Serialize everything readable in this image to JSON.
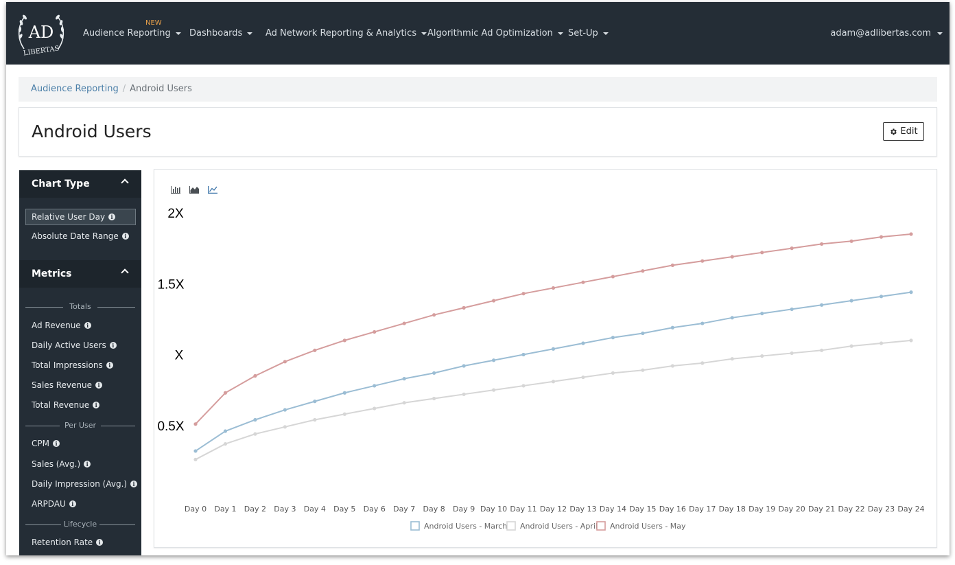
{
  "nav": {
    "badge": "NEW",
    "items": [
      "Audience Reporting",
      "Dashboards",
      "Ad Network Reporting & Analytics",
      "Algorithmic Ad Optimization",
      "Set-Up"
    ],
    "user": "adam@adlibertas.com",
    "logo_text_top": "AD",
    "logo_text_bottom": "LIBERTAS"
  },
  "breadcrumb": {
    "parent": "Audience Reporting",
    "separator": "/",
    "current": "Android Users"
  },
  "page": {
    "title": "Android Users",
    "edit_label": "Edit"
  },
  "sidebar": {
    "chart_type": {
      "title": "Chart Type",
      "items": [
        "Relative User Day",
        "Absolute Date Range"
      ],
      "selected": "Relative User Day"
    },
    "metrics": {
      "title": "Metrics",
      "groups": [
        {
          "label": "Totals",
          "items": [
            "Ad Revenue",
            "Daily Active Users",
            "Total Impressions",
            "Sales Revenue",
            "Total Revenue"
          ]
        },
        {
          "label": "Per User",
          "items": [
            "CPM",
            "Sales (Avg.)",
            "Daily Impression (Avg.)",
            "ARPDAU"
          ]
        },
        {
          "label": "Lifecycle",
          "items": [
            "Retention Rate"
          ]
        }
      ]
    }
  },
  "colors": {
    "march": "#9bbdd4",
    "april": "#d6d6d6",
    "may": "#d59d9d",
    "nav_bg": "#242d36"
  },
  "chart_data": {
    "type": "line",
    "title": "",
    "xlabel": "",
    "ylabel": "",
    "y_tick_labels": [
      "0.5X",
      "X",
      "1.5X",
      "2X"
    ],
    "y_tick_values": [
      0.5,
      1.0,
      1.5,
      2.0
    ],
    "ylim": [
      0,
      2.0
    ],
    "legend_position": "bottom",
    "grid": false,
    "categories": [
      "Day 0",
      "Day 1",
      "Day 2",
      "Day 3",
      "Day 4",
      "Day 5",
      "Day 6",
      "Day 7",
      "Day 8",
      "Day 9",
      "Day 10",
      "Day 11",
      "Day 12",
      "Day 13",
      "Day 14",
      "Day 15",
      "Day 16",
      "Day 17",
      "Day 18",
      "Day 19",
      "Day 20",
      "Day 21",
      "Day 22",
      "Day 23",
      "Day 24"
    ],
    "series": [
      {
        "name": "Android Users - March",
        "color": "#9bbdd4",
        "values": [
          0.32,
          0.46,
          0.54,
          0.61,
          0.67,
          0.73,
          0.78,
          0.83,
          0.87,
          0.92,
          0.96,
          1.0,
          1.04,
          1.08,
          1.12,
          1.15,
          1.19,
          1.22,
          1.26,
          1.29,
          1.32,
          1.35,
          1.38,
          1.41,
          1.44
        ]
      },
      {
        "name": "Android Users - April",
        "color": "#d6d6d6",
        "values": [
          0.26,
          0.37,
          0.44,
          0.49,
          0.54,
          0.58,
          0.62,
          0.66,
          0.69,
          0.72,
          0.75,
          0.78,
          0.81,
          0.84,
          0.87,
          0.89,
          0.92,
          0.94,
          0.97,
          0.99,
          1.01,
          1.03,
          1.06,
          1.08,
          1.1
        ]
      },
      {
        "name": "Android Users - May",
        "color": "#d59d9d",
        "values": [
          0.51,
          0.73,
          0.85,
          0.95,
          1.03,
          1.1,
          1.16,
          1.22,
          1.28,
          1.33,
          1.38,
          1.43,
          1.47,
          1.51,
          1.55,
          1.59,
          1.63,
          1.66,
          1.69,
          1.72,
          1.75,
          1.78,
          1.8,
          1.83,
          1.85
        ]
      }
    ]
  }
}
